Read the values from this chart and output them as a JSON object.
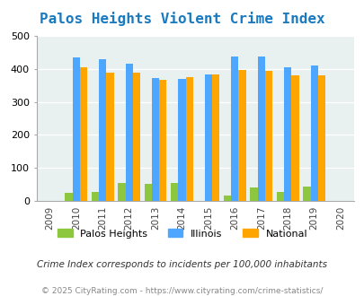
{
  "title": "Palos Heights Violent Crime Index",
  "subtitle": "Crime Index corresponds to incidents per 100,000 inhabitants",
  "footer": "© 2025 CityRating.com - https://www.cityrating.com/crime-statistics/",
  "years": [
    2009,
    2010,
    2011,
    2012,
    2013,
    2014,
    2015,
    2016,
    2017,
    2018,
    2019,
    2020
  ],
  "data_years": [
    2010,
    2011,
    2012,
    2013,
    2014,
    2015,
    2016,
    2017,
    2018,
    2019
  ],
  "palos_heights": [
    25,
    27,
    54,
    53,
    54,
    0,
    18,
    43,
    28,
    45
  ],
  "illinois": [
    433,
    428,
    415,
    372,
    369,
    383,
    438,
    437,
    405,
    409
  ],
  "national": [
    405,
    387,
    387,
    366,
    375,
    383,
    397,
    394,
    379,
    379
  ],
  "colors": {
    "palos_heights": "#8dc63f",
    "illinois": "#4da6ff",
    "national": "#ffa500",
    "background": "#e8f0f0",
    "plot_bg": "#e8f0f0",
    "title": "#1a7abf",
    "grid": "#ffffff",
    "subtitle": "#333333",
    "footer": "#888888"
  },
  "ylim": [
    0,
    500
  ],
  "yticks": [
    0,
    100,
    200,
    300,
    400,
    500
  ],
  "bar_width": 0.28,
  "legend_labels": [
    "Palos Heights",
    "Illinois",
    "National"
  ]
}
